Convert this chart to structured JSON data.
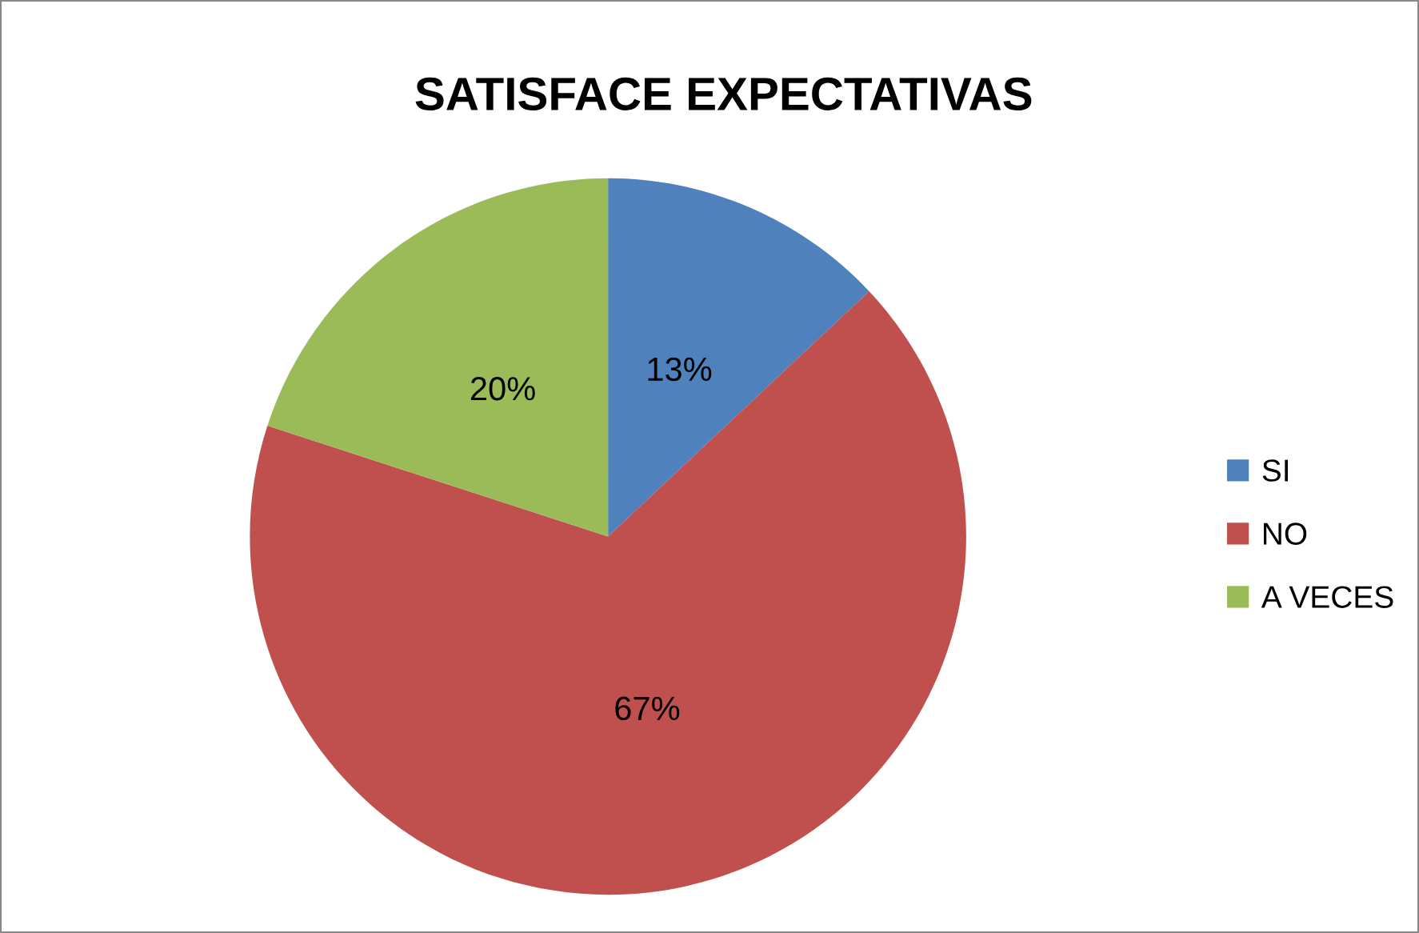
{
  "chart_data": {
    "type": "pie",
    "title": "SATISFACE EXPECTATIVAS",
    "categories": [
      "SI",
      "NO",
      "A VECES"
    ],
    "values": [
      13,
      67,
      20
    ],
    "value_labels": [
      "13%",
      "67%",
      "20%"
    ],
    "colors": [
      "#4f81bd",
      "#c0504d",
      "#9bbb59"
    ],
    "legend": "right"
  }
}
